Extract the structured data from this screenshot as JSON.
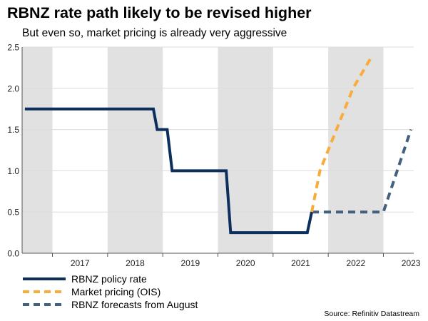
{
  "title": "RBNZ rate path likely to be revised higher",
  "subtitle": "But even so, market pricing is already very aggressive",
  "source": "Source: Refinitiv Datastream",
  "colors": {
    "policy": "#0d2f5e",
    "market": "#f8ac3c",
    "forecast": "#44607f",
    "shade": "#e1e1e1",
    "grid": "#dcdcdc"
  },
  "chart_data": {
    "type": "line",
    "title": "RBNZ rate path likely to be revised higher",
    "xlabel": "",
    "ylabel": "",
    "ylim": [
      0,
      2.5
    ],
    "yticks": [
      "0.0",
      "0.5",
      "1.0",
      "1.5",
      "2.0",
      "2.5"
    ],
    "ytick_values": [
      0,
      0.5,
      1,
      1.5,
      2,
      2.5
    ],
    "xlim": [
      2016.45,
      2023.55
    ],
    "years": [
      "2017",
      "2018",
      "2019",
      "2020",
      "2021",
      "2022",
      "2023"
    ],
    "grid": true,
    "legend_position": "bottom-left",
    "series": [
      {
        "name": "RBNZ policy rate",
        "style": "solid",
        "points": [
          [
            2016.5,
            1.75
          ],
          [
            2018.83,
            1.75
          ],
          [
            2018.9,
            1.5
          ],
          [
            2019.08,
            1.5
          ],
          [
            2019.17,
            1.0
          ],
          [
            2020.15,
            1.0
          ],
          [
            2020.23,
            0.25
          ],
          [
            2021.62,
            0.25
          ],
          [
            2021.7,
            0.5
          ]
        ]
      },
      {
        "name": "Market pricing (OIS)",
        "style": "dashed",
        "points": [
          [
            2021.7,
            0.5
          ],
          [
            2021.85,
            1.0
          ],
          [
            2022.15,
            1.5
          ],
          [
            2022.45,
            2.0
          ],
          [
            2022.8,
            2.4
          ]
        ]
      },
      {
        "name": "RBNZ forecasts from August",
        "style": "dashed",
        "points": [
          [
            2021.7,
            0.5
          ],
          [
            2023.0,
            0.5
          ],
          [
            2023.5,
            1.5
          ]
        ]
      }
    ]
  }
}
